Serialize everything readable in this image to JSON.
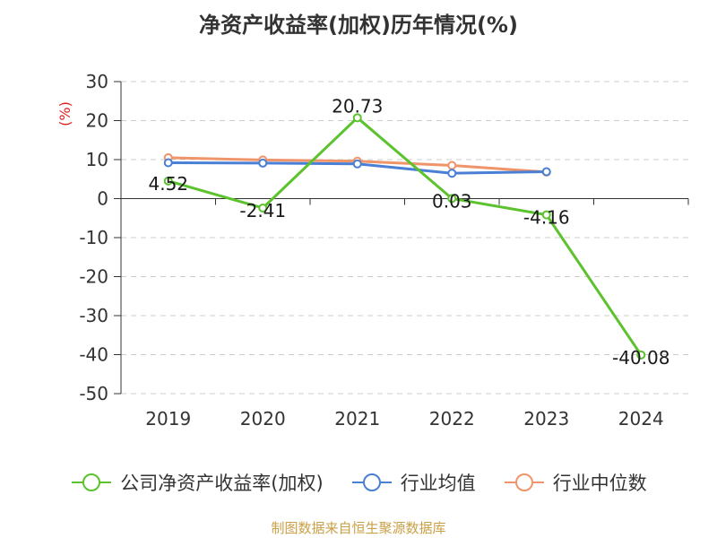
{
  "chart_data": {
    "type": "line",
    "title": "净资产收益率(加权)历年情况(%)",
    "ylabel": "(%)",
    "xlabel": "",
    "categories": [
      "2019",
      "2020",
      "2021",
      "2022",
      "2023",
      "2024"
    ],
    "ylim": [
      -50,
      30
    ],
    "yticks": [
      30,
      20,
      10,
      0,
      -10,
      -20,
      -30,
      -40,
      -50
    ],
    "grid": true,
    "legend_position": "bottom",
    "series": [
      {
        "name": "公司净资产收益率(加权)",
        "color": "#5cc22e",
        "values": [
          4.52,
          -2.41,
          20.73,
          0.03,
          -4.16,
          -40.08
        ],
        "labels": [
          "4.52",
          "-2.41",
          "20.73",
          "0.03",
          "-4.16",
          "-40.08"
        ]
      },
      {
        "name": "行业均值",
        "color": "#4a7fd6",
        "values": [
          9.2,
          9.1,
          8.9,
          6.5,
          6.9,
          null
        ]
      },
      {
        "name": "行业中位数",
        "color": "#f0946a",
        "values": [
          10.5,
          9.9,
          9.6,
          8.5,
          6.8,
          null
        ]
      }
    ]
  },
  "source": "制图数据来自恒生聚源数据库"
}
